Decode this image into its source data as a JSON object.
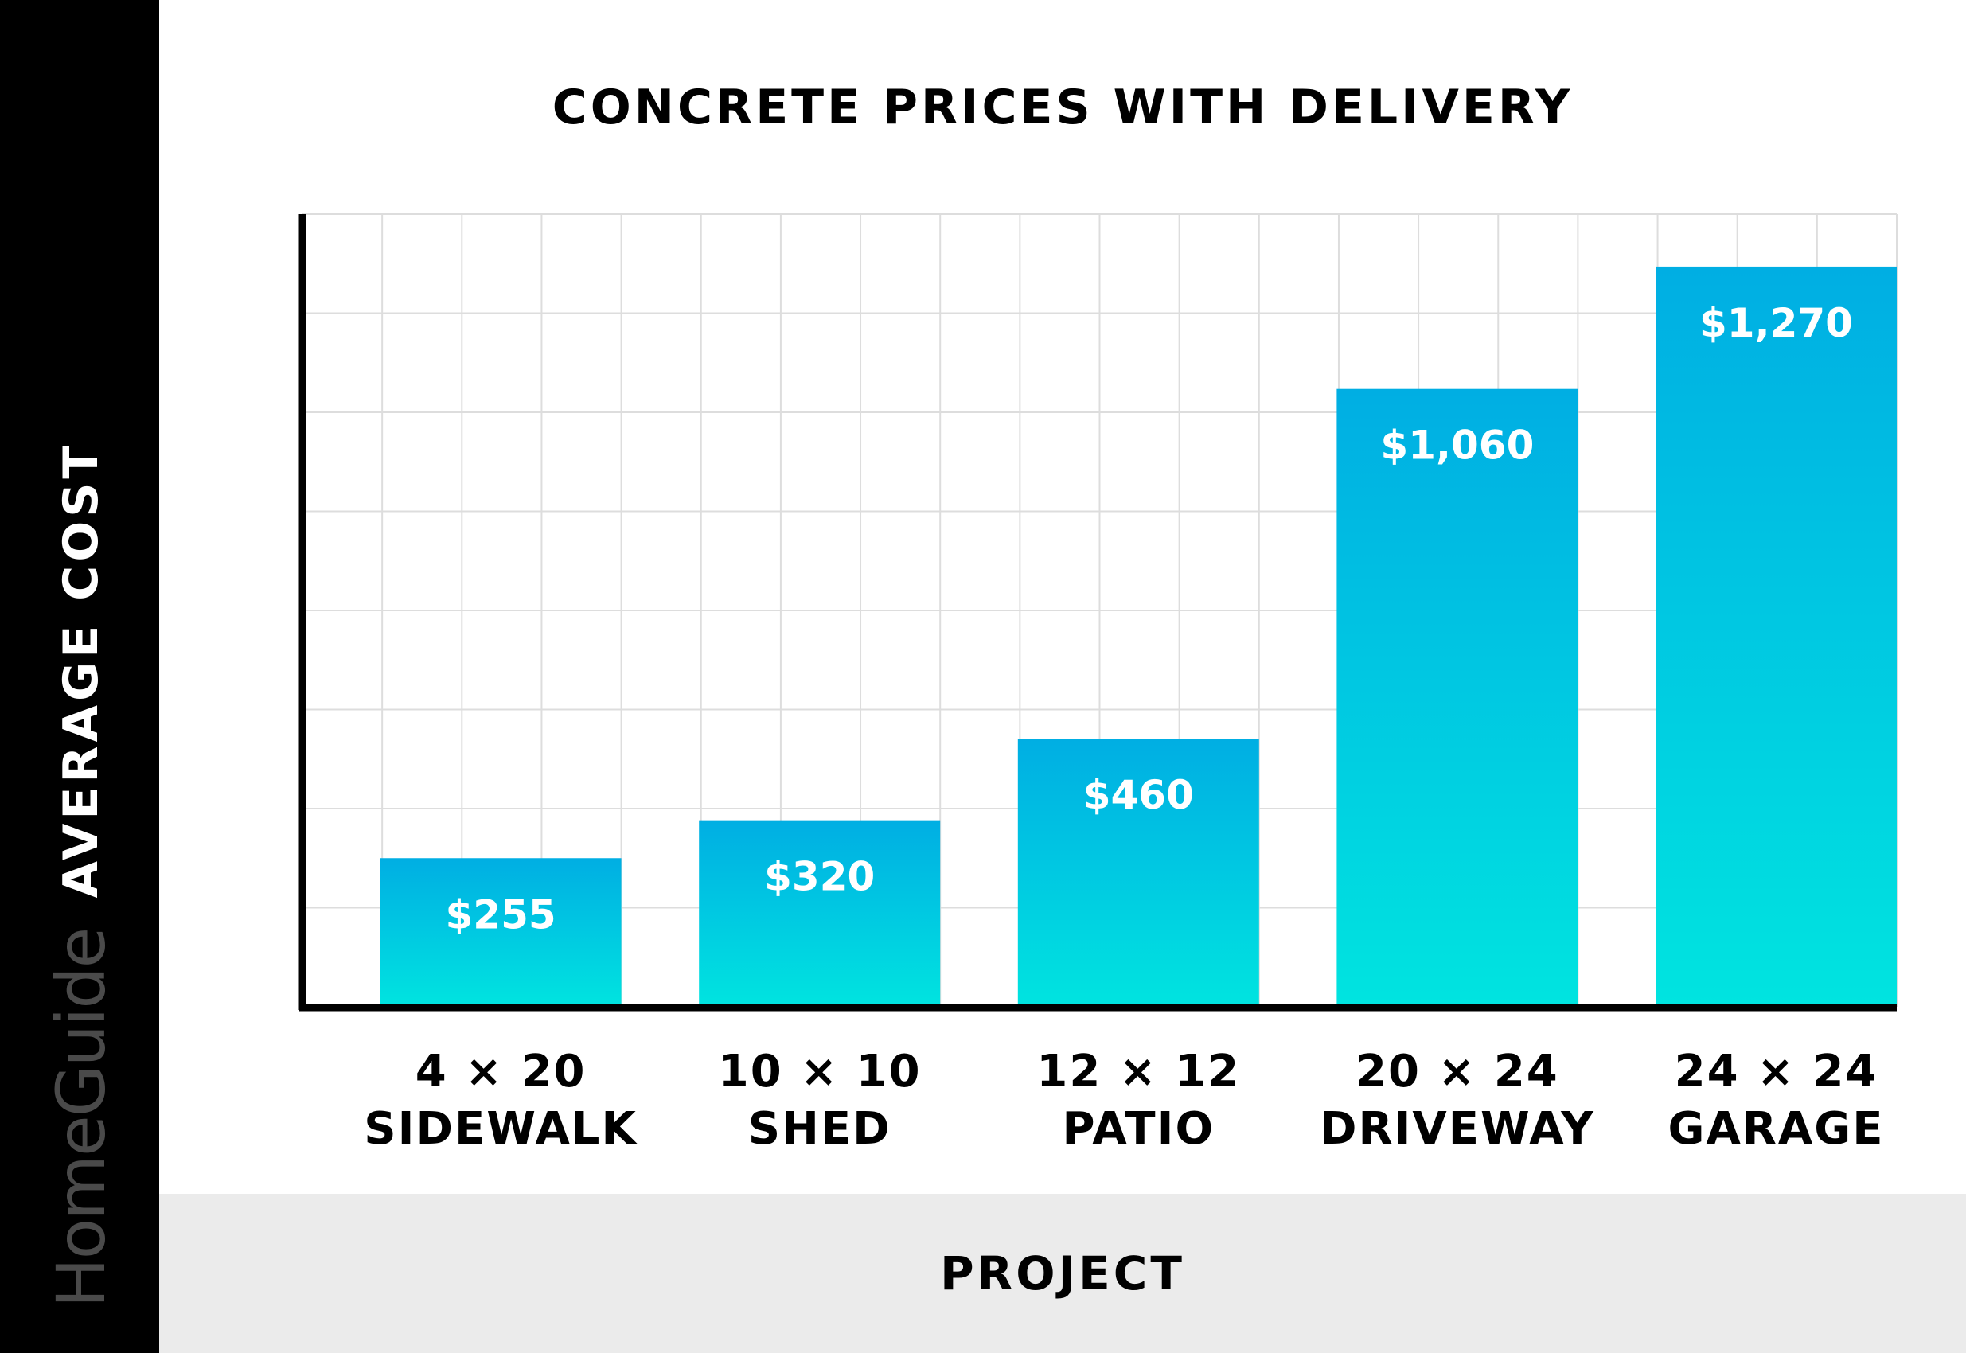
{
  "chart_data": {
    "type": "bar",
    "title": "CONCRETE PRICES WITH DELIVERY",
    "xlabel": "PROJECT",
    "ylabel": "AVERAGE COST",
    "categories": [
      [
        "4 × 20",
        "SIDEWALK"
      ],
      [
        "10 × 10",
        "SHED"
      ],
      [
        "12 × 12",
        "PATIO"
      ],
      [
        "20 × 24",
        "DRIVEWAY"
      ],
      [
        "24 × 24",
        "GARAGE"
      ]
    ],
    "values": [
      255,
      320,
      460,
      1060,
      1270
    ],
    "value_labels": [
      "$255",
      "$320",
      "$460",
      "$1,060",
      "$1,270"
    ],
    "ylim": [
      0,
      1360
    ],
    "grid": true,
    "colors": {
      "bar_top": "#00aee3",
      "bar_bottom": "#00e4e0",
      "grid": "#dddddd",
      "axis": "#000000"
    }
  },
  "brand": {
    "logo": "HomeGuide"
  }
}
